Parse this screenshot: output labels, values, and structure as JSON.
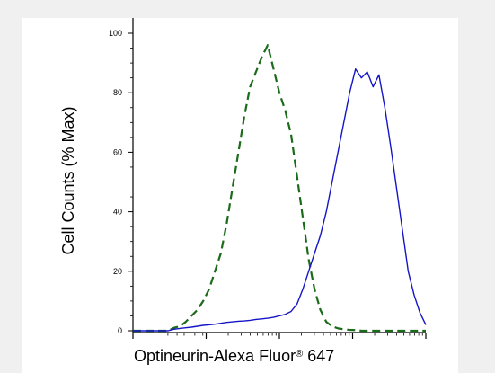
{
  "chart_data": {
    "type": "line",
    "title": "",
    "xlabel": "Optineurin-Alexa Fluor",
    "xlabel_superscript": "®",
    "xlabel_suffix": " 647",
    "ylabel": "Cell Counts (% Max)",
    "ylim": [
      0,
      100
    ],
    "yticks": [
      "0",
      "20",
      "40",
      "60",
      "80",
      "100"
    ],
    "xscale": "log",
    "grid": false,
    "x": [
      0,
      0.09,
      0.1,
      0.12,
      0.14,
      0.16,
      0.18,
      0.2,
      0.22,
      0.24,
      0.26,
      0.28,
      0.3,
      0.32,
      0.34,
      0.36,
      0.38,
      0.4,
      0.42,
      0.44,
      0.46,
      0.48,
      0.5,
      0.52,
      0.54,
      0.56,
      0.58,
      0.6,
      0.62,
      0.64,
      0.66,
      0.68,
      0.7,
      0.72,
      0.74,
      0.76,
      0.78,
      0.8,
      0.82,
      0.84,
      0.86,
      0.88,
      0.9,
      0.92,
      0.94,
      0.96,
      0.98,
      1.0
    ],
    "series": [
      {
        "color": "#1a6b1a",
        "style": "dashed",
        "values": [
          0,
          0,
          0,
          0,
          1,
          1.5,
          3,
          5,
          7,
          10,
          14,
          20,
          26,
          36,
          48,
          60,
          72,
          82,
          87,
          92,
          96,
          88,
          80,
          74,
          66,
          52,
          38,
          24,
          14,
          7,
          3,
          1.5,
          0.8,
          0.5,
          0.3,
          0.2,
          0,
          0,
          0,
          0,
          0,
          0,
          0,
          0,
          0,
          0,
          0,
          0
        ]
      },
      {
        "color": "#1515c8",
        "style": "solid",
        "values": [
          0,
          0,
          0,
          0,
          0.5,
          0.8,
          1,
          1.2,
          1.5,
          1.8,
          2,
          2.2,
          2.5,
          2.8,
          3,
          3.2,
          3.3,
          3.5,
          3.8,
          4,
          4.2,
          4.5,
          5,
          5.5,
          6.5,
          9,
          14,
          20,
          26,
          32,
          40,
          50,
          60,
          70,
          80,
          88,
          85,
          87,
          82,
          86,
          75,
          62,
          48,
          34,
          20,
          12,
          6,
          2
        ]
      }
    ]
  }
}
